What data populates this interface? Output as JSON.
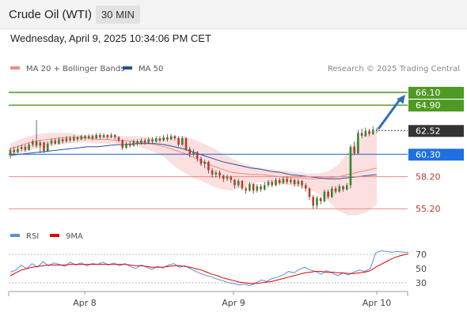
{
  "header": {
    "title": "Crude Oil (WTI)",
    "interval": "30 MIN"
  },
  "datetime": "Wednesday, April 9, 2025 10:34:06 PM CET",
  "legend": [
    {
      "label": "MA 20 + Bollinger Bands",
      "color": "#f28b82"
    },
    {
      "label": "MA 50",
      "color": "#27509b"
    }
  ],
  "credit": "Research © 2025 Trading Central",
  "rsi_legend": [
    {
      "label": "RSI",
      "color": "#5b8fd6"
    },
    {
      "label": "9MA",
      "color": "#e00000"
    }
  ],
  "colors": {
    "bullish": "#2e8b2e",
    "bearish": "#c0392b",
    "band": "#fbd4d4",
    "target_line": "#5aa02c",
    "support_line": "#e88a8a",
    "pivot_line": "#1f5fd6",
    "arrow": "#2f6fb8"
  },
  "chart_data": [
    {
      "type": "candlestick",
      "title": "Crude Oil (WTI)",
      "ylim": [
        54.4,
        67.5
      ],
      "x_ticks": [
        "Apr 8",
        "Apr 9",
        "Apr 10"
      ],
      "ma20_bollinger": {
        "mid": [
          60.8,
          61.1,
          61.4,
          61.6,
          61.7,
          61.8,
          61.9,
          61.9,
          61.8,
          61.7,
          61.7,
          61.6,
          61.6,
          61.5,
          61.4,
          61.2,
          61.0,
          60.7,
          60.4,
          60.0,
          59.6,
          59.2,
          58.9,
          58.6,
          58.5,
          58.4,
          58.4,
          58.3,
          58.2,
          58.1,
          58.1,
          58.0,
          58.0,
          58.1,
          58.2,
          58.4,
          58.6,
          58.8,
          59.0
        ],
        "upper": [
          61.3,
          61.7,
          62.0,
          62.2,
          62.3,
          62.3,
          62.3,
          62.2,
          62.1,
          62.1,
          62.0,
          62.0,
          62.0,
          62.0,
          61.9,
          61.8,
          61.8,
          61.9,
          62.0,
          61.7,
          61.3,
          60.9,
          60.4,
          59.9,
          59.5,
          59.2,
          59.0,
          58.9,
          58.8,
          58.7,
          58.6,
          58.5,
          58.5,
          58.7,
          59.3,
          60.5,
          61.6,
          62.3,
          62.5
        ],
        "lower": [
          60.2,
          60.4,
          60.7,
          60.9,
          61.0,
          61.2,
          61.3,
          61.4,
          61.4,
          61.3,
          61.3,
          61.3,
          61.2,
          61.1,
          60.8,
          60.5,
          60.0,
          59.2,
          58.6,
          58.1,
          57.7,
          57.3,
          57.0,
          56.9,
          57.2,
          57.5,
          57.7,
          57.6,
          57.5,
          57.4,
          57.2,
          57.0,
          56.6,
          55.9,
          55.0,
          54.6,
          54.6,
          54.9,
          55.6
        ]
      },
      "ma50": [
        60.2,
        60.3,
        60.4,
        60.5,
        60.6,
        60.7,
        60.8,
        60.9,
        61.0,
        61.0,
        61.1,
        61.2,
        61.2,
        61.3,
        61.3,
        61.3,
        61.2,
        61.0,
        60.8,
        60.5,
        60.2,
        59.9,
        59.6,
        59.4,
        59.2,
        59.0,
        58.9,
        58.7,
        58.6,
        58.4,
        58.3,
        58.2,
        58.1,
        58.0,
        58.0,
        58.1,
        58.2,
        58.3,
        58.4
      ],
      "levels": [
        {
          "value": 66.1,
          "label": "66.10",
          "kind": "target"
        },
        {
          "value": 64.9,
          "label": "64.90",
          "kind": "target"
        },
        {
          "value": 62.52,
          "label": "62.52",
          "kind": "last"
        },
        {
          "value": 60.3,
          "label": "60.30",
          "kind": "pivot"
        },
        {
          "value": 58.2,
          "label": "58.20",
          "kind": "support"
        },
        {
          "value": 55.2,
          "label": "55.20",
          "kind": "support"
        }
      ],
      "candles": [
        {
          "o": 60.2,
          "c": 60.7,
          "h": 60.9,
          "l": 59.9
        },
        {
          "o": 60.7,
          "c": 60.5,
          "h": 61.0,
          "l": 60.3
        },
        {
          "o": 60.5,
          "c": 60.8,
          "h": 61.1,
          "l": 60.4
        },
        {
          "o": 60.8,
          "c": 61.0,
          "h": 61.2,
          "l": 60.6
        },
        {
          "o": 61.0,
          "c": 60.7,
          "h": 61.2,
          "l": 60.5
        },
        {
          "o": 60.7,
          "c": 61.2,
          "h": 61.4,
          "l": 60.6
        },
        {
          "o": 61.2,
          "c": 61.5,
          "h": 61.7,
          "l": 61.0
        },
        {
          "o": 61.5,
          "c": 61.1,
          "h": 63.5,
          "l": 60.9
        },
        {
          "o": 61.1,
          "c": 61.4,
          "h": 61.6,
          "l": 60.4
        },
        {
          "o": 61.4,
          "c": 60.6,
          "h": 61.5,
          "l": 60.4
        },
        {
          "o": 60.6,
          "c": 61.3,
          "h": 61.5,
          "l": 60.5
        },
        {
          "o": 61.3,
          "c": 61.6,
          "h": 61.8,
          "l": 61.1
        },
        {
          "o": 61.6,
          "c": 61.3,
          "h": 61.8,
          "l": 61.2
        },
        {
          "o": 61.3,
          "c": 61.7,
          "h": 61.9,
          "l": 61.2
        },
        {
          "o": 61.7,
          "c": 61.5,
          "h": 61.9,
          "l": 61.3
        },
        {
          "o": 61.5,
          "c": 61.8,
          "h": 62.0,
          "l": 61.4
        },
        {
          "o": 61.8,
          "c": 61.6,
          "h": 62.0,
          "l": 61.4
        },
        {
          "o": 61.6,
          "c": 61.9,
          "h": 62.1,
          "l": 61.5
        },
        {
          "o": 61.9,
          "c": 61.7,
          "h": 62.0,
          "l": 61.5
        },
        {
          "o": 61.7,
          "c": 62.0,
          "h": 62.1,
          "l": 61.6
        },
        {
          "o": 62.0,
          "c": 61.8,
          "h": 62.1,
          "l": 61.6
        },
        {
          "o": 61.8,
          "c": 62.0,
          "h": 62.2,
          "l": 61.7
        },
        {
          "o": 62.0,
          "c": 61.8,
          "h": 62.2,
          "l": 61.6
        },
        {
          "o": 61.8,
          "c": 62.1,
          "h": 62.3,
          "l": 61.7
        },
        {
          "o": 62.1,
          "c": 61.9,
          "h": 62.3,
          "l": 61.7
        },
        {
          "o": 61.9,
          "c": 62.1,
          "h": 62.3,
          "l": 61.8
        },
        {
          "o": 62.1,
          "c": 61.9,
          "h": 62.2,
          "l": 61.7
        },
        {
          "o": 61.9,
          "c": 62.1,
          "h": 62.3,
          "l": 61.8
        },
        {
          "o": 62.1,
          "c": 61.9,
          "h": 62.2,
          "l": 61.7
        },
        {
          "o": 61.9,
          "c": 61.6,
          "h": 62.0,
          "l": 61.4
        },
        {
          "o": 61.6,
          "c": 60.9,
          "h": 61.7,
          "l": 60.7
        },
        {
          "o": 60.9,
          "c": 61.3,
          "h": 61.5,
          "l": 60.8
        },
        {
          "o": 61.3,
          "c": 61.1,
          "h": 61.5,
          "l": 60.9
        },
        {
          "o": 61.1,
          "c": 61.5,
          "h": 61.7,
          "l": 61.0
        },
        {
          "o": 61.5,
          "c": 61.3,
          "h": 61.7,
          "l": 61.1
        },
        {
          "o": 61.3,
          "c": 61.6,
          "h": 61.8,
          "l": 61.2
        },
        {
          "o": 61.6,
          "c": 61.4,
          "h": 61.8,
          "l": 61.2
        },
        {
          "o": 61.4,
          "c": 61.7,
          "h": 61.9,
          "l": 61.3
        },
        {
          "o": 61.7,
          "c": 61.5,
          "h": 61.9,
          "l": 61.3
        },
        {
          "o": 61.5,
          "c": 61.8,
          "h": 62.0,
          "l": 61.4
        },
        {
          "o": 61.8,
          "c": 61.6,
          "h": 62.0,
          "l": 61.4
        },
        {
          "o": 61.6,
          "c": 61.9,
          "h": 62.1,
          "l": 61.5
        },
        {
          "o": 61.9,
          "c": 61.7,
          "h": 62.2,
          "l": 61.5
        },
        {
          "o": 61.7,
          "c": 62.0,
          "h": 62.2,
          "l": 61.6
        },
        {
          "o": 62.0,
          "c": 61.8,
          "h": 62.1,
          "l": 61.6
        },
        {
          "o": 61.8,
          "c": 61.2,
          "h": 62.0,
          "l": 61.0
        },
        {
          "o": 61.2,
          "c": 61.8,
          "h": 62.0,
          "l": 61.1
        },
        {
          "o": 61.8,
          "c": 60.8,
          "h": 61.9,
          "l": 60.6
        },
        {
          "o": 60.8,
          "c": 60.3,
          "h": 61.0,
          "l": 60.0
        },
        {
          "o": 60.3,
          "c": 60.5,
          "h": 60.8,
          "l": 60.1
        },
        {
          "o": 60.5,
          "c": 59.9,
          "h": 60.6,
          "l": 59.6
        },
        {
          "o": 59.9,
          "c": 59.4,
          "h": 60.1,
          "l": 59.2
        },
        {
          "o": 59.4,
          "c": 59.6,
          "h": 59.8,
          "l": 59.0
        },
        {
          "o": 59.6,
          "c": 58.8,
          "h": 59.7,
          "l": 58.5
        },
        {
          "o": 58.8,
          "c": 58.4,
          "h": 59.0,
          "l": 58.1
        },
        {
          "o": 58.4,
          "c": 58.6,
          "h": 58.8,
          "l": 58.1
        },
        {
          "o": 58.6,
          "c": 58.3,
          "h": 58.8,
          "l": 58.0
        },
        {
          "o": 58.3,
          "c": 58.0,
          "h": 58.4,
          "l": 57.7
        },
        {
          "o": 58.0,
          "c": 58.2,
          "h": 58.4,
          "l": 57.8
        },
        {
          "o": 58.2,
          "c": 57.9,
          "h": 58.3,
          "l": 57.6
        },
        {
          "o": 57.9,
          "c": 57.4,
          "h": 58.0,
          "l": 57.1
        },
        {
          "o": 57.4,
          "c": 57.8,
          "h": 58.0,
          "l": 57.2
        },
        {
          "o": 57.8,
          "c": 57.1,
          "h": 57.9,
          "l": 56.9
        },
        {
          "o": 57.1,
          "c": 56.9,
          "h": 57.3,
          "l": 56.6
        },
        {
          "o": 56.9,
          "c": 57.5,
          "h": 57.7,
          "l": 56.8
        },
        {
          "o": 57.5,
          "c": 56.9,
          "h": 57.6,
          "l": 56.6
        },
        {
          "o": 56.9,
          "c": 57.3,
          "h": 57.5,
          "l": 56.7
        },
        {
          "o": 57.3,
          "c": 57.0,
          "h": 57.5,
          "l": 56.8
        },
        {
          "o": 57.0,
          "c": 57.4,
          "h": 57.7,
          "l": 56.9
        },
        {
          "o": 57.4,
          "c": 57.7,
          "h": 57.9,
          "l": 57.2
        },
        {
          "o": 57.7,
          "c": 57.4,
          "h": 57.9,
          "l": 57.2
        },
        {
          "o": 57.4,
          "c": 57.9,
          "h": 58.1,
          "l": 57.3
        },
        {
          "o": 57.9,
          "c": 57.6,
          "h": 58.1,
          "l": 57.4
        },
        {
          "o": 57.6,
          "c": 58.0,
          "h": 58.2,
          "l": 57.5
        },
        {
          "o": 58.0,
          "c": 57.7,
          "h": 58.2,
          "l": 57.5
        },
        {
          "o": 57.7,
          "c": 57.9,
          "h": 58.1,
          "l": 57.5
        },
        {
          "o": 57.9,
          "c": 57.5,
          "h": 58.0,
          "l": 57.3
        },
        {
          "o": 57.5,
          "c": 57.8,
          "h": 58.0,
          "l": 57.3
        },
        {
          "o": 57.8,
          "c": 57.4,
          "h": 57.9,
          "l": 57.1
        },
        {
          "o": 57.4,
          "c": 57.1,
          "h": 57.6,
          "l": 56.8
        },
        {
          "o": 57.1,
          "c": 56.3,
          "h": 57.2,
          "l": 56.0
        },
        {
          "o": 56.3,
          "c": 55.5,
          "h": 56.5,
          "l": 55.2
        },
        {
          "o": 55.5,
          "c": 56.2,
          "h": 56.4,
          "l": 55.2
        },
        {
          "o": 56.2,
          "c": 55.9,
          "h": 56.3,
          "l": 55.6
        },
        {
          "o": 55.9,
          "c": 56.8,
          "h": 57.0,
          "l": 55.8
        },
        {
          "o": 56.8,
          "c": 56.3,
          "h": 57.0,
          "l": 56.1
        },
        {
          "o": 56.3,
          "c": 57.1,
          "h": 57.3,
          "l": 56.2
        },
        {
          "o": 57.1,
          "c": 56.8,
          "h": 57.3,
          "l": 56.6
        },
        {
          "o": 56.8,
          "c": 57.3,
          "h": 57.5,
          "l": 56.7
        },
        {
          "o": 57.3,
          "c": 57.0,
          "h": 57.4,
          "l": 56.8
        },
        {
          "o": 57.0,
          "c": 57.4,
          "h": 57.6,
          "l": 56.9
        },
        {
          "o": 57.4,
          "c": 61.0,
          "h": 61.2,
          "l": 57.1
        },
        {
          "o": 61.0,
          "c": 60.4,
          "h": 61.5,
          "l": 60.2
        },
        {
          "o": 60.4,
          "c": 62.3,
          "h": 62.6,
          "l": 60.3
        },
        {
          "o": 62.3,
          "c": 62.0,
          "h": 62.7,
          "l": 61.8
        },
        {
          "o": 62.0,
          "c": 62.5,
          "h": 62.8,
          "l": 61.9
        },
        {
          "o": 62.5,
          "c": 62.2,
          "h": 62.7,
          "l": 62.0
        },
        {
          "o": 62.2,
          "c": 62.6,
          "h": 62.9,
          "l": 62.1
        },
        {
          "o": 62.6,
          "c": 62.52,
          "h": 62.8,
          "l": 62.3
        }
      ]
    },
    {
      "type": "line",
      "title": "RSI",
      "ylim": [
        20,
        80
      ],
      "y_ticks": [
        70,
        50,
        30
      ],
      "series": [
        {
          "name": "RSI",
          "values": [
            45,
            48,
            55,
            50,
            57,
            52,
            60,
            54,
            58,
            56,
            53,
            59,
            55,
            58,
            54,
            57,
            56,
            59,
            55,
            58,
            54,
            57,
            53,
            50,
            55,
            52,
            49,
            53,
            51,
            55,
            57,
            52,
            54,
            50,
            46,
            43,
            40,
            38,
            35,
            33,
            30,
            29,
            27,
            28,
            26,
            30,
            34,
            32,
            36,
            38,
            41,
            46,
            44,
            49,
            52,
            48,
            46,
            42,
            47,
            44,
            40,
            44,
            41,
            45,
            48,
            46,
            50,
            72,
            75,
            74,
            73,
            74,
            73,
            73
          ]
        },
        {
          "name": "9MA",
          "values": [
            40,
            44,
            48,
            50,
            52,
            53,
            54,
            55,
            55,
            55,
            55,
            56,
            56,
            56,
            56,
            56,
            56,
            56,
            56,
            56,
            56,
            56,
            55,
            54,
            54,
            53,
            52,
            52,
            52,
            53,
            54,
            54,
            53,
            52,
            50,
            48,
            45,
            42,
            40,
            37,
            35,
            33,
            31,
            30,
            29,
            29,
            30,
            31,
            32,
            34,
            36,
            38,
            40,
            42,
            44,
            45,
            46,
            46,
            45,
            45,
            44,
            44,
            43,
            43,
            44,
            45,
            47,
            52,
            56,
            60,
            64,
            67,
            69,
            71
          ]
        }
      ],
      "reference_lines": [
        70,
        30
      ]
    }
  ]
}
